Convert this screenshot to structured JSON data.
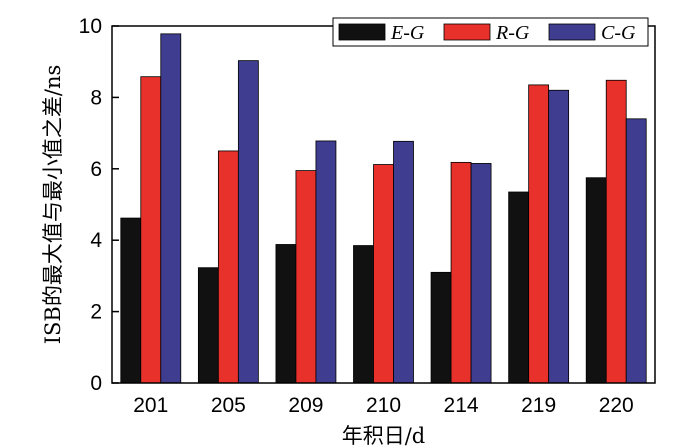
{
  "chart_data": {
    "type": "bar",
    "title": "",
    "xlabel": "年积日/d",
    "ylabel": "ISB的最大值与最小值之差/ns",
    "categories": [
      "201",
      "205",
      "209",
      "210",
      "214",
      "219",
      "220"
    ],
    "ylim": [
      0,
      10
    ],
    "yticks": [
      0,
      2,
      4,
      6,
      8,
      10
    ],
    "legend_position": "top-right",
    "series": [
      {
        "name": "E-G",
        "color": "#111111",
        "values": [
          4.62,
          3.23,
          3.88,
          3.85,
          3.1,
          5.35,
          5.75
        ]
      },
      {
        "name": "R-G",
        "color": "#e8312a",
        "values": [
          8.58,
          6.5,
          5.95,
          6.12,
          6.18,
          8.35,
          8.48
        ]
      },
      {
        "name": "C-G",
        "color": "#3f3d8f",
        "values": [
          9.78,
          9.03,
          6.78,
          6.77,
          6.15,
          8.2,
          7.4
        ]
      }
    ]
  }
}
